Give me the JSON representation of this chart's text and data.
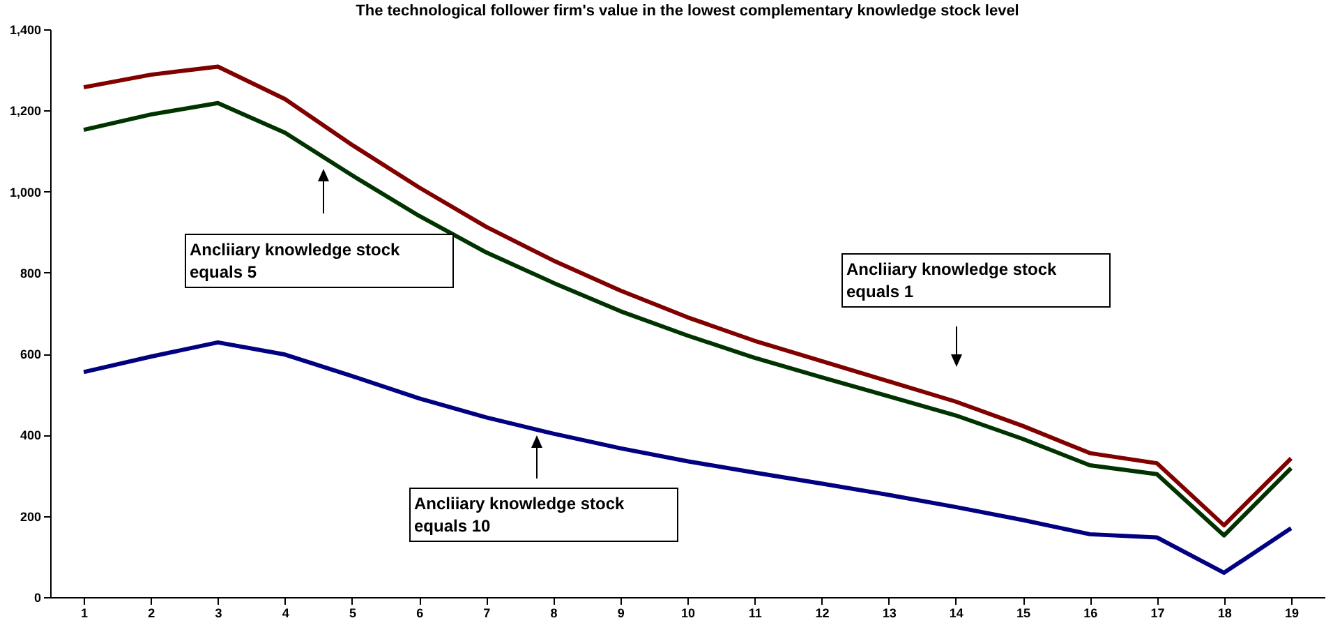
{
  "chart_data": {
    "type": "line",
    "title": "The technological follower firm's value in the lowest complementary knowledge stock level",
    "x": [
      1,
      2,
      3,
      4,
      5,
      6,
      7,
      8,
      9,
      10,
      11,
      12,
      13,
      14,
      15,
      16,
      17,
      18,
      19
    ],
    "xlim": [
      0.5,
      19.5
    ],
    "xticks": [
      1,
      2,
      3,
      4,
      5,
      6,
      7,
      8,
      9,
      10,
      11,
      12,
      13,
      14,
      15,
      16,
      17,
      18,
      19
    ],
    "ylim": [
      0,
      1400
    ],
    "yticks": [
      0,
      200,
      400,
      600,
      800,
      {
        "value": 1000,
        "label": "1,000"
      },
      {
        "value": 1200,
        "label": "1,200"
      },
      {
        "value": 1400,
        "label": "1,400"
      }
    ],
    "grid": false,
    "marker": "none",
    "line_style": "solid",
    "series": [
      {
        "color": "#800000",
        "values": [
          1257,
          1288,
          1308,
          1228,
          1115,
          1010,
          913,
          830,
          756,
          690,
          632,
          582,
          532,
          482,
          422,
          355,
          330,
          177,
          342
        ]
      },
      {
        "color": "#003300",
        "values": [
          1152,
          1190,
          1218,
          1145,
          1040,
          940,
          850,
          775,
          705,
          645,
          590,
          542,
          495,
          448,
          390,
          325,
          303,
          152,
          318
        ]
      },
      {
        "color": "#000080",
        "values": [
          555,
          593,
          628,
          598,
          545,
          490,
          443,
          403,
          367,
          335,
          307,
          280,
          252,
          222,
          190,
          155,
          147,
          60,
          170
        ]
      }
    ],
    "annotations": [
      "Ancliiary knowledge stock equals 5",
      "Ancliiary knowledge stock equals 1",
      "Ancliiary knowledge stock equals 10"
    ]
  }
}
